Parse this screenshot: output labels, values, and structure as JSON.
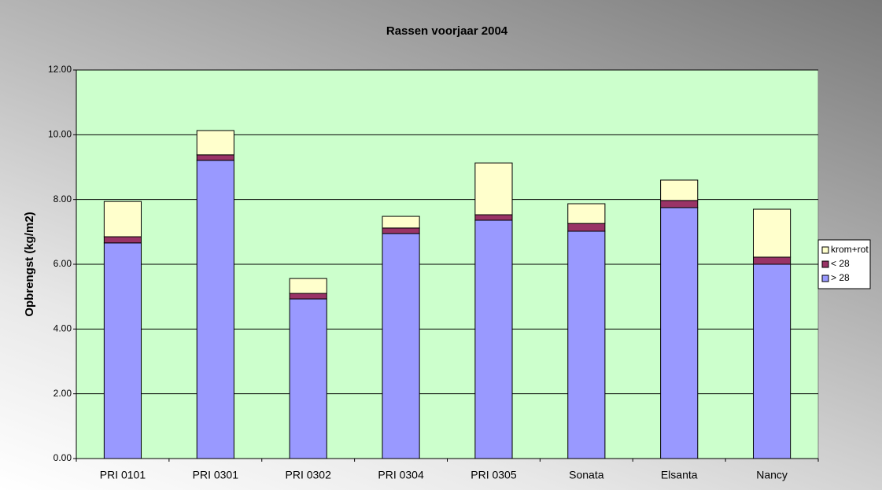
{
  "chart_data": {
    "type": "stacked_bar",
    "title": "Rassen voorjaar 2004",
    "y_label": "Opbrengst (kg/m2)",
    "categories": [
      "PRI 0101",
      "PRI 0301",
      "PRI 0302",
      "PRI 0304",
      "PRI 0305",
      "Sonata",
      "Elsanta",
      "Nancy"
    ],
    "series": [
      {
        "name": "> 28",
        "color": "#9999ff",
        "values": [
          6.66,
          9.21,
          4.93,
          6.95,
          7.36,
          7.02,
          7.75,
          6.0
        ]
      },
      {
        "name": "< 28",
        "color": "#993366",
        "values": [
          0.19,
          0.17,
          0.17,
          0.17,
          0.17,
          0.24,
          0.22,
          0.22
        ]
      },
      {
        "name": "krom+rot",
        "color": "#ffffcc",
        "values": [
          1.09,
          0.75,
          0.46,
          0.36,
          1.6,
          0.61,
          0.63,
          1.48
        ]
      }
    ],
    "ylim": [
      0,
      12
    ],
    "yticks": [
      {
        "value": 0,
        "label": "0.00"
      },
      {
        "value": 2,
        "label": "2.00"
      },
      {
        "value": 4,
        "label": "4.00"
      },
      {
        "value": 6,
        "label": "6.00"
      },
      {
        "value": 8,
        "label": "8.00"
      },
      {
        "value": 10,
        "label": "10.00"
      },
      {
        "value": 12,
        "label": "12.00"
      }
    ],
    "grid": true,
    "legend": "right",
    "plot_background": "#ccffcc"
  }
}
